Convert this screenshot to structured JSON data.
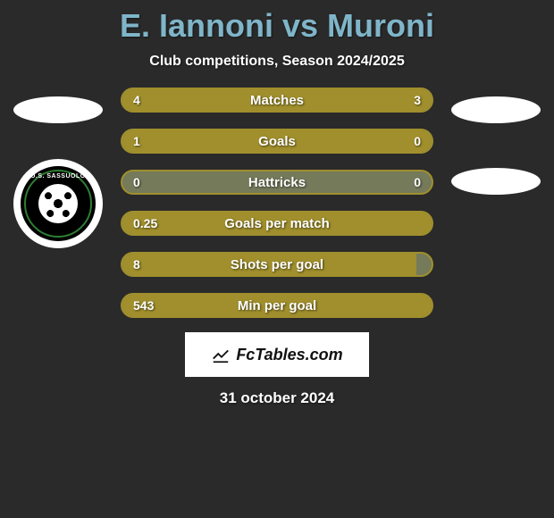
{
  "title": "E. Iannoni vs Muroni",
  "subtitle": "Club competitions, Season 2024/2025",
  "date": "31 october 2024",
  "watermark_text": "FcTables.com",
  "badge_text": "U.S. SASSUOLO",
  "colors": {
    "background": "#2a2a2a",
    "title": "#7fb5c9",
    "bar_border": "#a08f2c",
    "bar_track": "#747a5a",
    "bar_fill": "#a08f2c",
    "text": "#ffffff",
    "badge_bg": "#000000",
    "badge_border": "#ffffff",
    "badge_ring": "#2e7d32"
  },
  "bars": [
    {
      "label": "Matches",
      "left_val": "4",
      "right_val": "3",
      "left_pct": 57,
      "right_pct": 43,
      "show_right": true
    },
    {
      "label": "Goals",
      "left_val": "1",
      "right_val": "0",
      "left_pct": 75,
      "right_pct": 25,
      "show_right": true
    },
    {
      "label": "Hattricks",
      "left_val": "0",
      "right_val": "0",
      "left_pct": 0,
      "right_pct": 0,
      "show_right": true
    },
    {
      "label": "Goals per match",
      "left_val": "0.25",
      "right_val": "",
      "left_pct": 100,
      "right_pct": 0,
      "show_right": false
    },
    {
      "label": "Shots per goal",
      "left_val": "8",
      "right_val": "",
      "left_pct": 95,
      "right_pct": 0,
      "show_right": false
    },
    {
      "label": "Min per goal",
      "left_val": "543",
      "right_val": "",
      "left_pct": 100,
      "right_pct": 0,
      "show_right": false
    }
  ]
}
